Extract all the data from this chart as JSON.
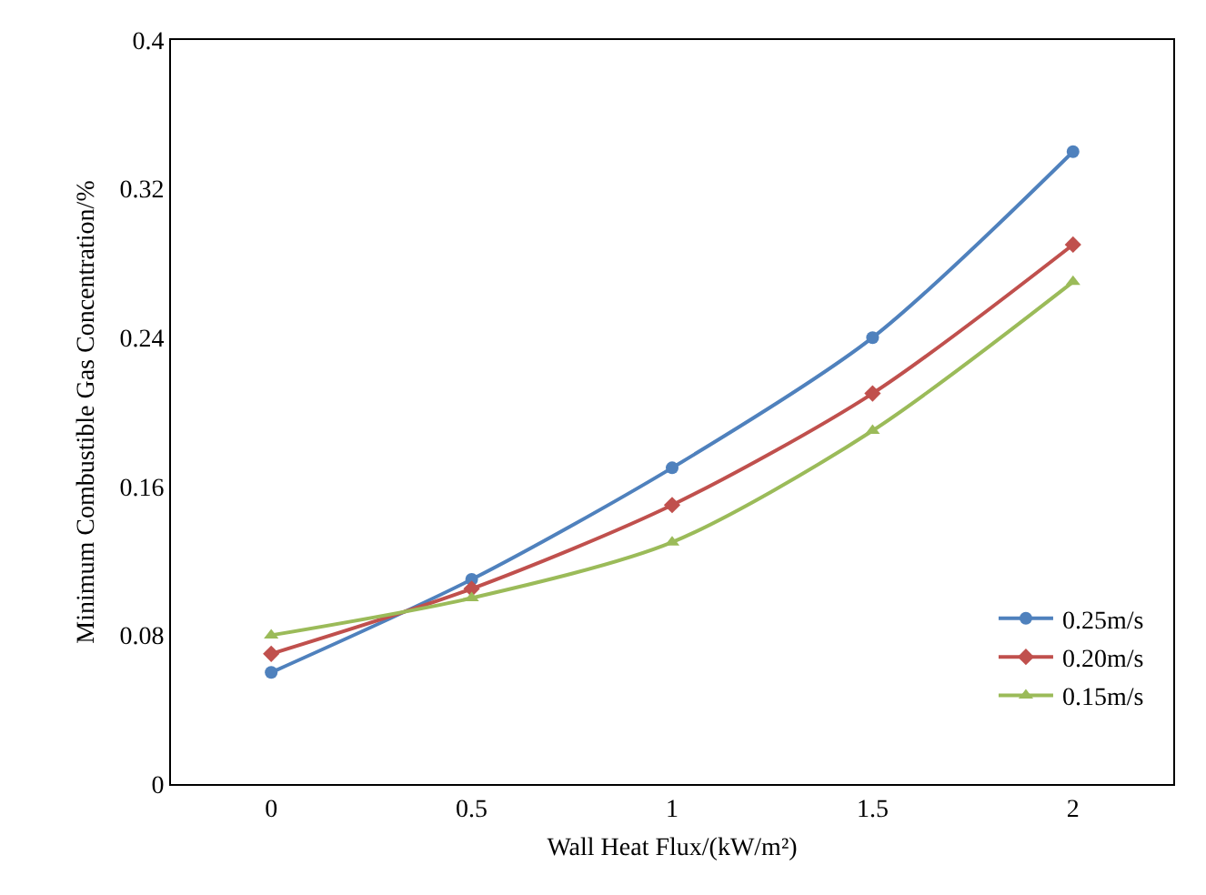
{
  "chart_data": {
    "type": "line",
    "xlabel": "Wall Heat Flux/(kW/m²)",
    "ylabel": "Minimum Combustible Gas Concentration/%",
    "x": [
      0,
      0.5,
      1,
      1.5,
      2
    ],
    "series": [
      {
        "name": "0.25m/s",
        "color": "#4f81bd",
        "values": [
          0.06,
          0.11,
          0.17,
          0.24,
          0.34
        ],
        "marker": "circle"
      },
      {
        "name": "0.20m/s",
        "color": "#c0504d",
        "values": [
          0.07,
          0.105,
          0.15,
          0.21,
          0.29
        ],
        "marker": "diamond"
      },
      {
        "name": "0.15m/s",
        "color": "#9bbb59",
        "values": [
          0.08,
          0.1,
          0.13,
          0.19,
          0.27
        ],
        "marker": "triangle"
      }
    ],
    "xlim": [
      -0.25,
      2.25
    ],
    "xticks": [
      0,
      0.5,
      1,
      1.5,
      2
    ],
    "ylim": [
      0,
      0.4
    ],
    "yticks": [
      0,
      0.08,
      0.16,
      0.24,
      0.32,
      0.4
    ],
    "grid": false,
    "legend": "bottom right",
    "line_style": "solid"
  }
}
